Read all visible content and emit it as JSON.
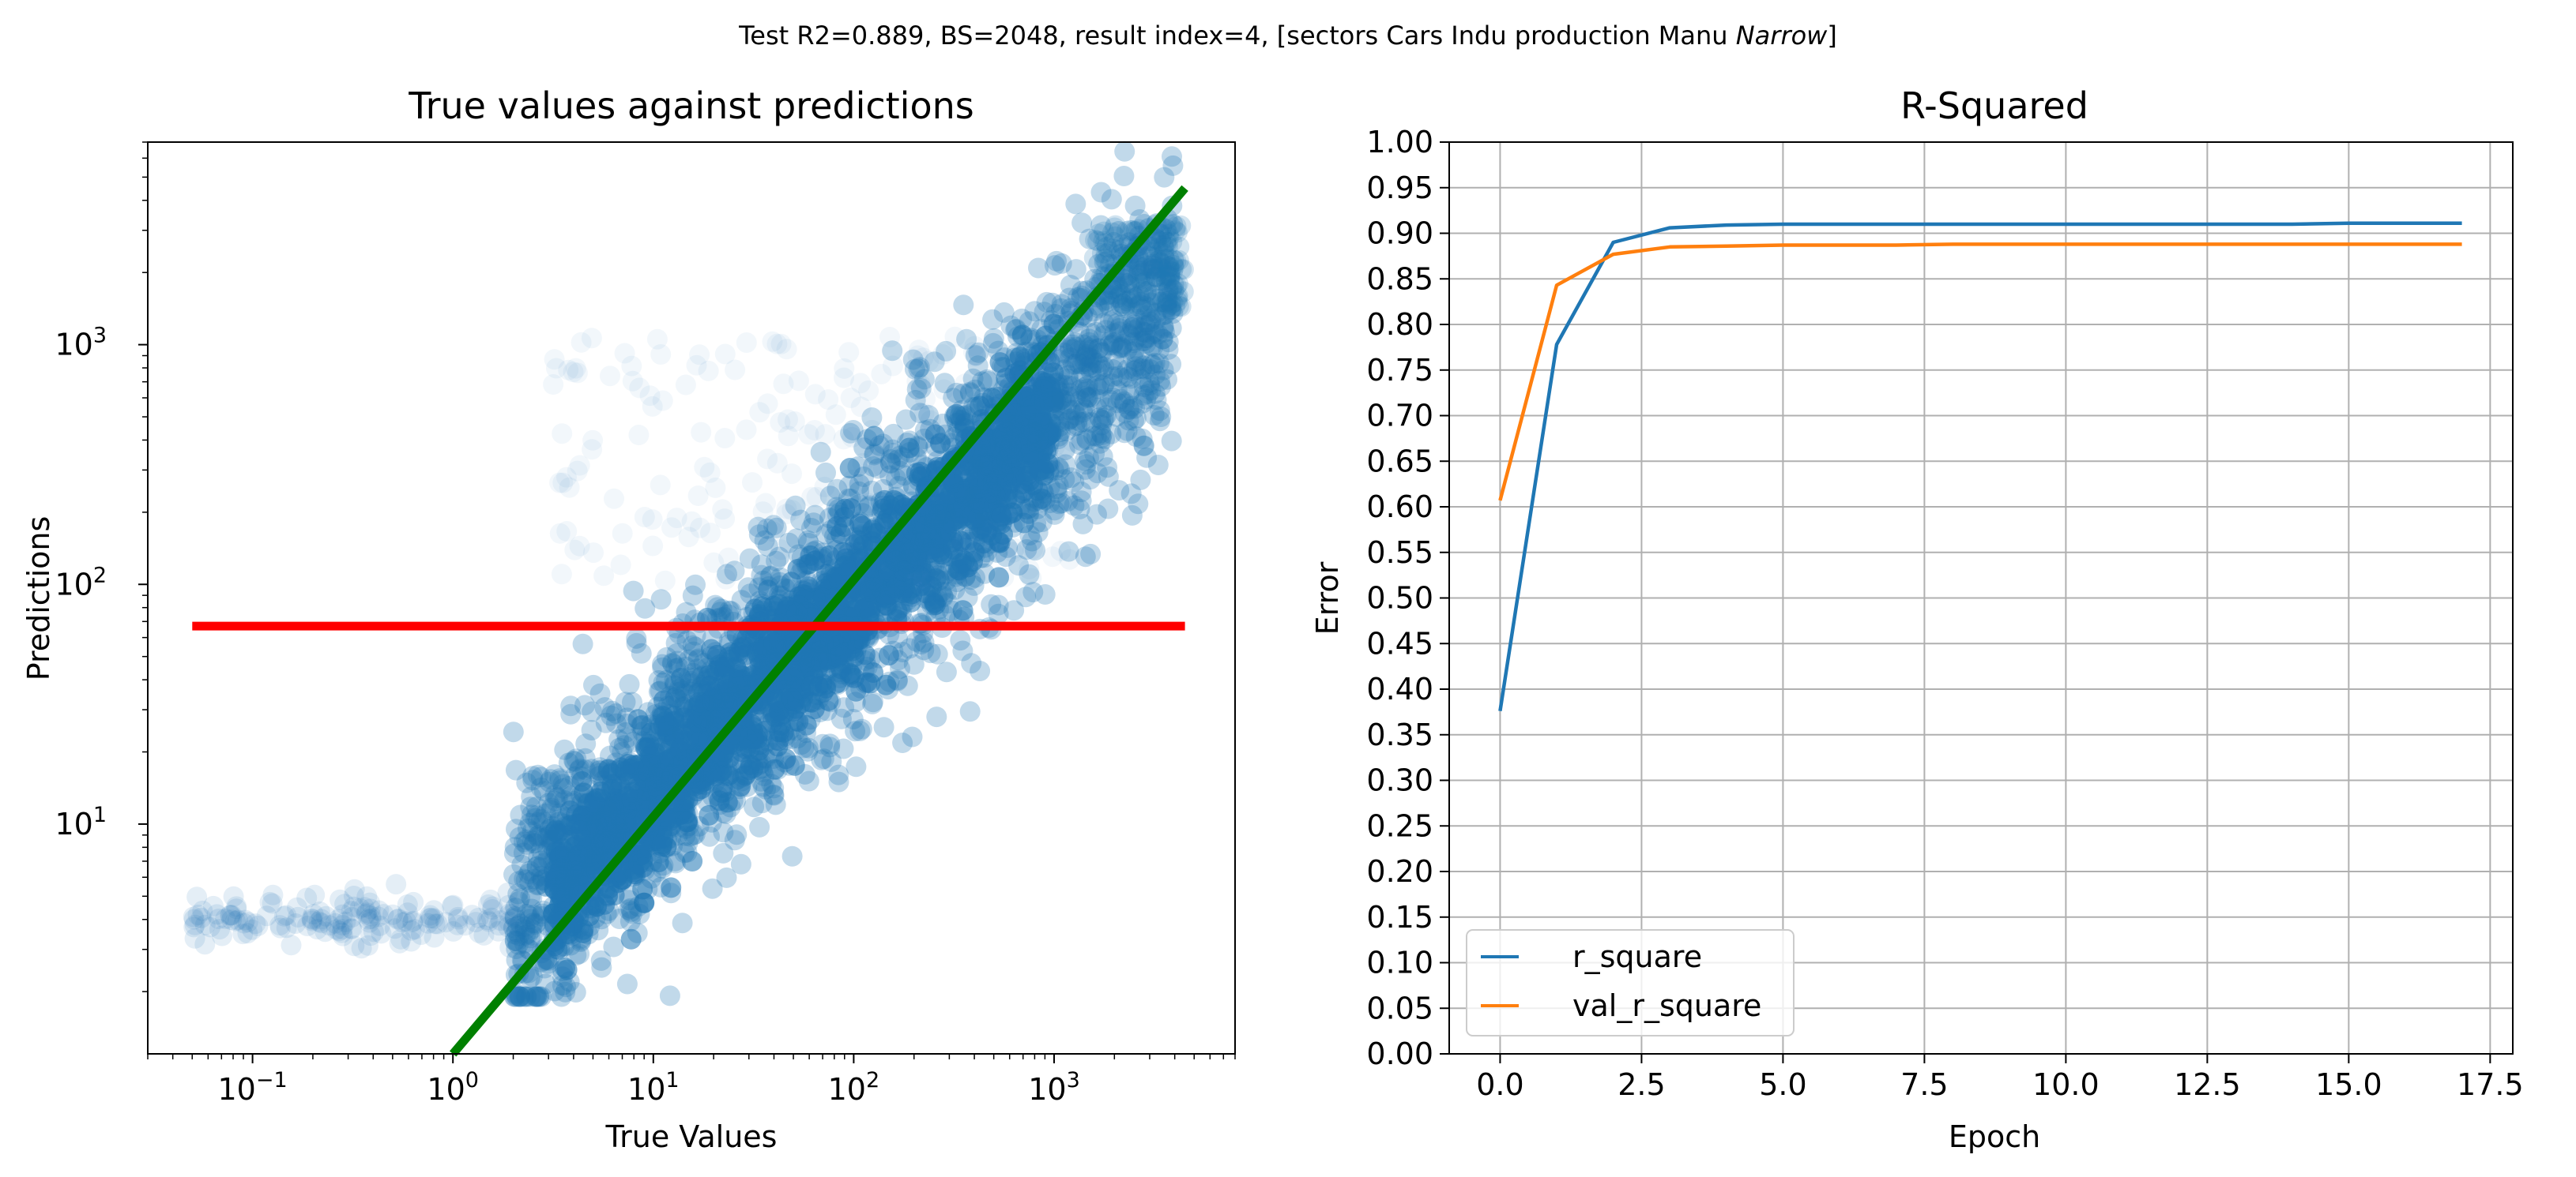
{
  "figure": {
    "suptitle_prefix": "Test R2=0.889, BS=2048, result index=4, [sectors Cars Indu production Manu ",
    "suptitle_italic": "Narrow",
    "suptitle_suffix": "]"
  },
  "colors": {
    "scatter": "#1f77b4",
    "green_line": "#008000",
    "red_line": "#ff0000",
    "r_square": "#1f77b4",
    "val_r_square": "#ff7f0e",
    "grid": "#b0b0b0"
  },
  "chart_data": [
    {
      "type": "scatter",
      "title": "True values against predictions",
      "xlabel": "True Values",
      "ylabel": "Predictions",
      "xscale": "log",
      "yscale": "log",
      "xlim": [
        0.03,
        8000
      ],
      "ylim": [
        1.1,
        7000
      ],
      "x_ticks": [
        {
          "value": 0.1,
          "base": "10",
          "exp": "−1"
        },
        {
          "value": 1,
          "base": "10",
          "exp": "0"
        },
        {
          "value": 10,
          "base": "10",
          "exp": "1"
        },
        {
          "value": 100,
          "base": "10",
          "exp": "2"
        },
        {
          "value": 1000,
          "base": "10",
          "exp": "3"
        }
      ],
      "y_ticks": [
        {
          "value": 10,
          "base": "10",
          "exp": "1"
        },
        {
          "value": 100,
          "base": "10",
          "exp": "2"
        },
        {
          "value": 1000,
          "base": "10",
          "exp": "3"
        }
      ],
      "reference_lines": [
        {
          "name": "identity",
          "color": "green",
          "x": [
            1,
            4500
          ],
          "y": [
            1,
            4500
          ]
        },
        {
          "name": "mean prediction",
          "color": "red",
          "x": [
            0.05,
            4500
          ],
          "y": [
            67,
            67
          ]
        }
      ],
      "point_cloud": {
        "description_points": [
          [
            0.05,
            4
          ],
          [
            0.2,
            4
          ],
          [
            0.5,
            4.5
          ],
          [
            1.2,
            2
          ],
          [
            2,
            2
          ],
          [
            3,
            3
          ],
          [
            5,
            5
          ],
          [
            10,
            8
          ],
          [
            20,
            20
          ],
          [
            50,
            60
          ],
          [
            100,
            120
          ],
          [
            300,
            400
          ],
          [
            1000,
            1000
          ],
          [
            3000,
            2800
          ],
          [
            4500,
            3000
          ],
          [
            10,
            1000
          ],
          [
            30,
            600
          ],
          [
            100,
            1000
          ],
          [
            300,
            1000
          ]
        ]
      },
      "grid": false
    },
    {
      "type": "line",
      "title": "R-Squared",
      "xlabel": "Epoch",
      "ylabel": "Error",
      "xlim": [
        -0.9,
        17.9
      ],
      "ylim": [
        0,
        1
      ],
      "x_ticks": [
        "0.0",
        "2.5",
        "5.0",
        "7.5",
        "10.0",
        "12.5",
        "15.0",
        "17.5"
      ],
      "y_ticks": [
        "0.00",
        "0.05",
        "0.10",
        "0.15",
        "0.20",
        "0.25",
        "0.30",
        "0.35",
        "0.40",
        "0.45",
        "0.50",
        "0.55",
        "0.60",
        "0.65",
        "0.70",
        "0.75",
        "0.80",
        "0.85",
        "0.90",
        "0.95",
        "1.00"
      ],
      "x": [
        0,
        1,
        2,
        3,
        4,
        5,
        6,
        7,
        8,
        9,
        10,
        11,
        12,
        13,
        14,
        15,
        16,
        17
      ],
      "series": [
        {
          "name": "r_square",
          "color": "#1f77b4",
          "values": [
            0.376,
            0.778,
            0.89,
            0.906,
            0.909,
            0.91,
            0.91,
            0.91,
            0.91,
            0.91,
            0.91,
            0.91,
            0.91,
            0.91,
            0.91,
            0.911,
            0.911,
            0.911
          ]
        },
        {
          "name": "val_r_square",
          "color": "#ff7f0e",
          "values": [
            0.607,
            0.843,
            0.877,
            0.885,
            0.886,
            0.887,
            0.887,
            0.887,
            0.888,
            0.888,
            0.888,
            0.888,
            0.888,
            0.888,
            0.888,
            0.888,
            0.888,
            0.888
          ]
        }
      ],
      "grid": true,
      "legend_position": "lower-left"
    }
  ]
}
